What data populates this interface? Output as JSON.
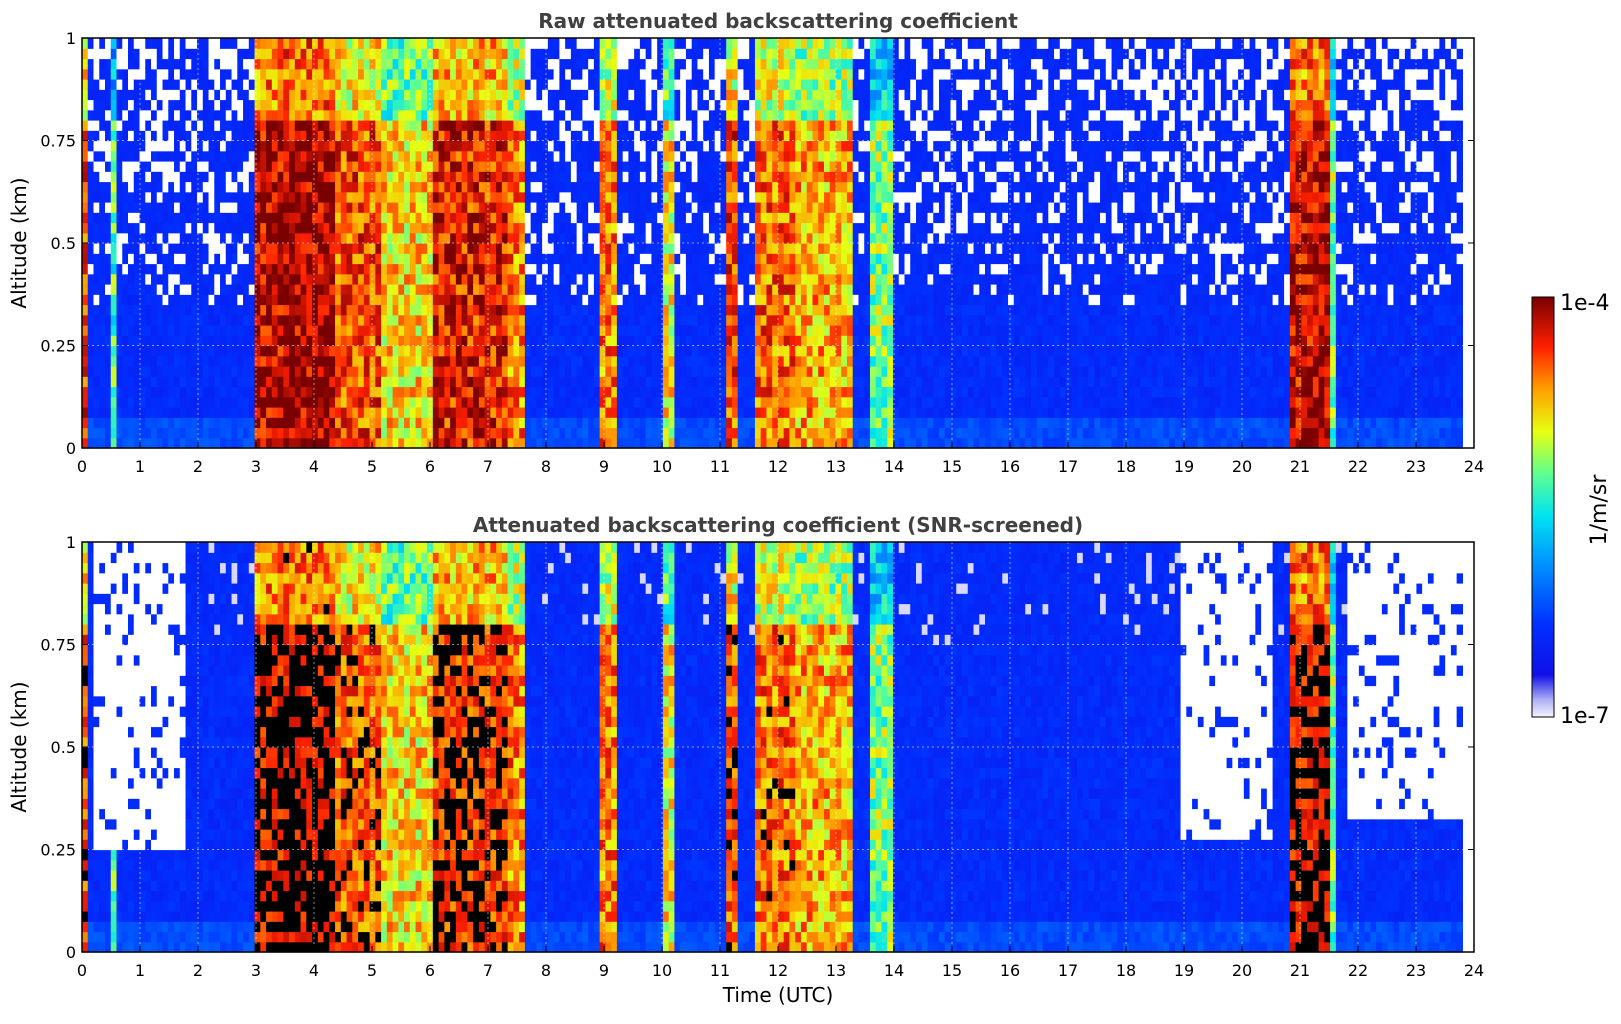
{
  "chart_data": [
    {
      "type": "heatmap",
      "title": "Raw attenuated backscattering coefficient",
      "xlabel": "",
      "ylabel": "Altitude (km)",
      "xlim": [
        0,
        24
      ],
      "ylim": [
        0,
        1
      ],
      "x_ticks": [
        "0",
        "1",
        "2",
        "3",
        "4",
        "5",
        "6",
        "7",
        "8",
        "9",
        "10",
        "11",
        "12",
        "13",
        "14",
        "15",
        "16",
        "17",
        "18",
        "19",
        "20",
        "21",
        "22",
        "23",
        "24"
      ],
      "y_ticks": [
        "0",
        "0.25",
        "0.5",
        "0.75",
        "1"
      ],
      "grid": true,
      "screened": false,
      "cloud_events": [
        {
          "start": 0.0,
          "end": 0.12,
          "top": 1.0,
          "intensity": 0.85
        },
        {
          "start": 0.45,
          "end": 0.62,
          "top": 1.0,
          "intensity": 0.55
        },
        {
          "start": 3.0,
          "end": 3.5,
          "top": 1.0,
          "intensity": 0.95
        },
        {
          "start": 3.5,
          "end": 4.4,
          "top": 1.0,
          "intensity": 0.97
        },
        {
          "start": 4.4,
          "end": 5.2,
          "top": 1.0,
          "intensity": 0.85
        },
        {
          "start": 5.2,
          "end": 6.0,
          "top": 1.0,
          "intensity": 0.72
        },
        {
          "start": 6.0,
          "end": 7.3,
          "top": 1.0,
          "intensity": 0.9
        },
        {
          "start": 7.3,
          "end": 7.6,
          "top": 1.0,
          "intensity": 0.8
        },
        {
          "start": 8.95,
          "end": 9.25,
          "top": 1.0,
          "intensity": 0.8
        },
        {
          "start": 10.0,
          "end": 10.25,
          "top": 1.0,
          "intensity": 0.7
        },
        {
          "start": 11.15,
          "end": 11.35,
          "top": 1.0,
          "intensity": 0.85
        },
        {
          "start": 11.6,
          "end": 12.3,
          "top": 1.0,
          "intensity": 0.82
        },
        {
          "start": 12.3,
          "end": 13.3,
          "top": 1.0,
          "intensity": 0.76
        },
        {
          "start": 13.6,
          "end": 13.95,
          "top": 1.0,
          "intensity": 0.6
        },
        {
          "start": 20.85,
          "end": 21.5,
          "top": 1.0,
          "intensity": 0.95
        },
        {
          "start": 21.5,
          "end": 21.65,
          "top": 1.0,
          "intensity": 0.6
        }
      ]
    },
    {
      "type": "heatmap",
      "title": "Attenuated backscattering coefficient (SNR-screened)",
      "xlabel": "Time (UTC)",
      "ylabel": "Altitude (km)",
      "xlim": [
        0,
        24
      ],
      "ylim": [
        0,
        1
      ],
      "x_ticks": [
        "0",
        "1",
        "2",
        "3",
        "4",
        "5",
        "6",
        "7",
        "8",
        "9",
        "10",
        "11",
        "12",
        "13",
        "14",
        "15",
        "16",
        "17",
        "18",
        "19",
        "20",
        "21",
        "22",
        "23",
        "24"
      ],
      "y_ticks": [
        "0",
        "0.25",
        "0.5",
        "0.75",
        "1"
      ],
      "grid": true,
      "screened": true,
      "screen_ceiling": [
        {
          "start": 0.2,
          "end": 0.55,
          "top": 0.25
        },
        {
          "start": 0.6,
          "end": 1.8,
          "top": 0.24
        },
        {
          "start": 18.9,
          "end": 20.5,
          "top": 0.28
        },
        {
          "start": 21.8,
          "end": 23.8,
          "top": 0.32
        }
      ],
      "cloud_events": [
        {
          "start": 0.0,
          "end": 0.12,
          "top": 1.0,
          "intensity": 0.85
        },
        {
          "start": 0.45,
          "end": 0.62,
          "top": 1.0,
          "intensity": 0.55
        },
        {
          "start": 3.0,
          "end": 3.5,
          "top": 1.0,
          "intensity": 0.95
        },
        {
          "start": 3.5,
          "end": 4.4,
          "top": 1.0,
          "intensity": 0.97
        },
        {
          "start": 4.4,
          "end": 5.2,
          "top": 1.0,
          "intensity": 0.85
        },
        {
          "start": 5.2,
          "end": 6.0,
          "top": 1.0,
          "intensity": 0.72
        },
        {
          "start": 6.0,
          "end": 7.3,
          "top": 1.0,
          "intensity": 0.9
        },
        {
          "start": 7.3,
          "end": 7.6,
          "top": 1.0,
          "intensity": 0.8
        },
        {
          "start": 8.95,
          "end": 9.25,
          "top": 1.0,
          "intensity": 0.8
        },
        {
          "start": 10.0,
          "end": 10.25,
          "top": 1.0,
          "intensity": 0.7
        },
        {
          "start": 11.15,
          "end": 11.35,
          "top": 1.0,
          "intensity": 0.85
        },
        {
          "start": 11.6,
          "end": 12.3,
          "top": 1.0,
          "intensity": 0.82
        },
        {
          "start": 12.3,
          "end": 13.3,
          "top": 1.0,
          "intensity": 0.76
        },
        {
          "start": 13.6,
          "end": 13.95,
          "top": 1.0,
          "intensity": 0.6
        },
        {
          "start": 20.85,
          "end": 21.5,
          "top": 1.0,
          "intensity": 0.95
        },
        {
          "start": 21.5,
          "end": 21.65,
          "top": 1.0,
          "intensity": 0.6
        }
      ]
    }
  ],
  "colorbar": {
    "label": "1/m/sr",
    "max_label": "1e-4",
    "min_label": "1e-7",
    "range": [
      1e-07,
      0.0001
    ],
    "scale": "log",
    "colormap": "jet"
  }
}
